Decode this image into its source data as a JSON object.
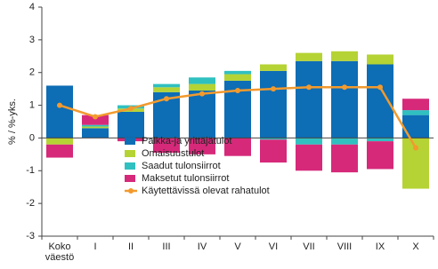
{
  "chart_data": {
    "type": "bar",
    "y_label": "% / %-yks.",
    "categories": [
      "Koko väestö",
      "I",
      "II",
      "III",
      "IV",
      "V",
      "VI",
      "VII",
      "VIII",
      "IX",
      "X"
    ],
    "series": [
      {
        "name": "Palkka-ja yrittäjätulot",
        "color": "#0d6db5",
        "values": [
          1.6,
          0.3,
          0.8,
          1.4,
          1.45,
          1.75,
          2.05,
          2.35,
          2.35,
          2.25,
          0.7
        ]
      },
      {
        "name": "Omaisuustulot",
        "color": "#b5d334",
        "values": [
          -0.2,
          0.05,
          0.1,
          0.15,
          0.2,
          0.2,
          0.2,
          0.25,
          0.3,
          0.3,
          -1.55
        ]
      },
      {
        "name": "Saadut tulonsiirrot",
        "color": "#30c0c0",
        "values": [
          0,
          0.05,
          0.1,
          0.1,
          0.2,
          0.1,
          -0.05,
          -0.2,
          -0.2,
          -0.1,
          0.15
        ]
      },
      {
        "name": "Maksetut tulonsiirrot",
        "color": "#d6297a",
        "values": [
          -0.4,
          0.3,
          -0.1,
          -0.45,
          -0.5,
          -0.55,
          -0.7,
          -0.8,
          -0.85,
          -0.85,
          0.35
        ]
      },
      {
        "name": "Käytettävissä olevat rahatulot",
        "type": "line",
        "color": "#f29a2e",
        "values": [
          1.0,
          0.65,
          0.9,
          1.2,
          1.35,
          1.45,
          1.5,
          1.55,
          1.55,
          1.55,
          -0.3
        ]
      }
    ],
    "ylim": [
      -3,
      4
    ],
    "yticks": [
      -3,
      -2,
      -1,
      0,
      1,
      2,
      3,
      4
    ]
  }
}
